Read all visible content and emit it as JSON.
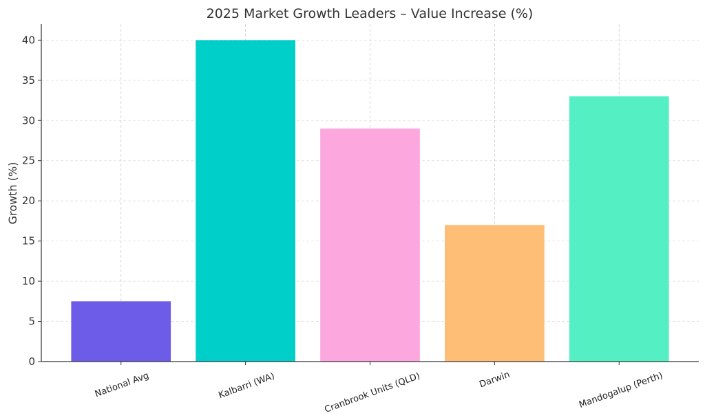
{
  "chart_data": {
    "type": "bar",
    "title": "2025 Market Growth Leaders – Value Increase (%)",
    "xlabel": "",
    "ylabel": "Growth (%)",
    "categories": [
      "National Avg",
      "Kalbarri (WA)",
      "Cranbrook Units (QLD)",
      "Darwin",
      "Mandogalup (Perth)"
    ],
    "values": [
      7.5,
      40,
      29,
      17,
      33
    ],
    "colors": [
      "#6c5ce7",
      "#00cec9",
      "#fda7df",
      "#ffbe76",
      "#55efc4"
    ],
    "ylim": [
      0,
      42
    ],
    "yticks": [
      0,
      5,
      10,
      15,
      20,
      25,
      30,
      35,
      40
    ],
    "grid": true,
    "legend": "none"
  }
}
